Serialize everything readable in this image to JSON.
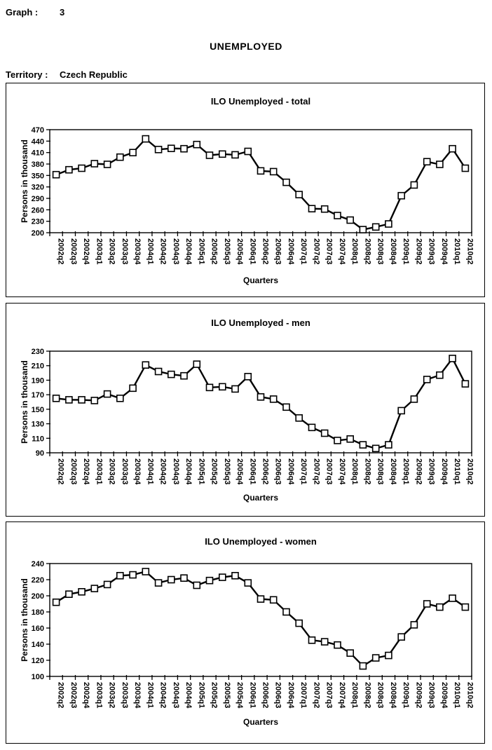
{
  "header": {
    "graph_label": "Graph :",
    "graph_number": "3",
    "page_title": "UNEMPLOYED",
    "territory_label": "Territory :",
    "territory_value": "Czech Republic"
  },
  "styles": {
    "line_color": "#000000",
    "marker_fill": "#ffffff",
    "marker_border": "#000000",
    "axis_color": "#000000"
  },
  "chart_data": [
    {
      "type": "line",
      "title": "ILO Unemployed - total",
      "ylabel": "Persons in thousand",
      "xlabel": "Quarters",
      "ylim": [
        200,
        470
      ],
      "ystep": 30,
      "grid": false,
      "legend": "none",
      "categories": [
        "2002q2",
        "2002q3",
        "2002q4",
        "2003q1",
        "2003q2",
        "2003q3",
        "2003q4",
        "2004q1",
        "2004q2",
        "2004q3",
        "2004q4",
        "2005q1",
        "2005q2",
        "2005q3",
        "2005q4",
        "2006q1",
        "2006q2",
        "2006q3",
        "2006q4",
        "2007q1",
        "2007q2",
        "2007q3",
        "2007q4",
        "2008q1",
        "2008q2",
        "2008q3",
        "2008q4",
        "2009q1",
        "2009q2",
        "2009q3",
        "2009q4",
        "2010q1",
        "2010q2"
      ],
      "values": [
        352,
        365,
        369,
        381,
        379,
        398,
        410,
        446,
        418,
        421,
        420,
        431,
        403,
        406,
        404,
        413,
        362,
        360,
        332,
        300,
        263,
        262,
        245,
        233,
        208,
        215,
        223,
        297,
        325,
        386,
        379,
        420,
        369
      ]
    },
    {
      "type": "line",
      "title": "ILO Unemployed - men",
      "ylabel": "Persons in thousand",
      "xlabel": "Quarters",
      "ylim": [
        90,
        230
      ],
      "ystep": 20,
      "grid": false,
      "legend": "none",
      "categories": [
        "2002q2",
        "2002q3",
        "2002q4",
        "2003q1",
        "2003q2",
        "2003q3",
        "2003q4",
        "2004q1",
        "2004q2",
        "2004q3",
        "2004q4",
        "2005q1",
        "2005q2",
        "2005q3",
        "2005q4",
        "2006q1",
        "2006q2",
        "2006q3",
        "2006q4",
        "2007q1",
        "2007q2",
        "2007q3",
        "2007q4",
        "2008q1",
        "2008q2",
        "2008q3",
        "2008q4",
        "2009q1",
        "2009q2",
        "2009q3",
        "2009q4",
        "2010q1",
        "2010q2"
      ],
      "values": [
        165,
        163,
        163,
        162,
        171,
        165,
        179,
        211,
        202,
        198,
        196,
        212,
        180,
        181,
        178,
        195,
        167,
        164,
        153,
        138,
        125,
        117,
        107,
        109,
        101,
        96,
        101,
        148,
        164,
        191,
        197,
        220,
        185
      ]
    },
    {
      "type": "line",
      "title": "ILO Unemployed - women",
      "ylabel": "Persons in thousand",
      "xlabel": "Quarters",
      "ylim": [
        100,
        240
      ],
      "ystep": 20,
      "grid": false,
      "legend": "none",
      "categories": [
        "2002q2",
        "2002q3",
        "2002q4",
        "2003q1",
        "2003q2",
        "2003q3",
        "2003q4",
        "2004q1",
        "2004q2",
        "2004q3",
        "2004q4",
        "2005q1",
        "2005q2",
        "2005q3",
        "2005q4",
        "2006q1",
        "2006q2",
        "2006q3",
        "2006q4",
        "2007q1",
        "2007q2",
        "2007q3",
        "2007q4",
        "2008q1",
        "2008q2",
        "2008q3",
        "2008q4",
        "2009q1",
        "2009q2",
        "2009q3",
        "2009q4",
        "2010q1",
        "2010q2"
      ],
      "values": [
        192,
        202,
        205,
        209,
        214,
        225,
        226,
        230,
        216,
        220,
        222,
        213,
        219,
        223,
        225,
        216,
        196,
        195,
        180,
        166,
        145,
        143,
        139,
        129,
        113,
        123,
        126,
        149,
        164,
        190,
        186,
        197,
        186
      ]
    }
  ]
}
